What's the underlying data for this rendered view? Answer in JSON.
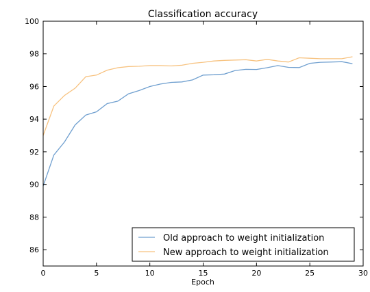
{
  "chart_data": {
    "type": "line",
    "title": "Classification accuracy",
    "xlabel": "Epoch",
    "ylabel": "",
    "xlim": [
      0,
      30
    ],
    "ylim": [
      85,
      100
    ],
    "xticks": [
      0,
      5,
      10,
      15,
      20,
      25,
      30
    ],
    "yticks": [
      86,
      88,
      90,
      92,
      94,
      96,
      98,
      100
    ],
    "grid": false,
    "legend_position": "lower-right",
    "series": [
      {
        "name": "Old approach to weight initialization",
        "color": "#6f9fcf",
        "x": [
          0,
          1,
          2,
          3,
          4,
          5,
          6,
          7,
          8,
          9,
          10,
          11,
          12,
          13,
          14,
          15,
          16,
          17,
          18,
          19,
          20,
          21,
          22,
          23,
          24,
          25,
          26,
          27,
          28,
          29
        ],
        "values": [
          89.9,
          91.8,
          92.6,
          93.65,
          94.25,
          94.45,
          94.95,
          95.1,
          95.55,
          95.75,
          96.0,
          96.15,
          96.25,
          96.28,
          96.4,
          96.7,
          96.72,
          96.76,
          96.98,
          97.05,
          97.04,
          97.15,
          97.28,
          97.17,
          97.16,
          97.42,
          97.48,
          97.5,
          97.52,
          97.4
        ]
      },
      {
        "name": "New approach to weight initialization",
        "color": "#f7c27f",
        "x": [
          0,
          1,
          2,
          3,
          4,
          5,
          6,
          7,
          8,
          9,
          10,
          11,
          12,
          13,
          14,
          15,
          16,
          17,
          18,
          19,
          20,
          21,
          22,
          23,
          24,
          25,
          26,
          27,
          28,
          29
        ],
        "values": [
          93.0,
          94.8,
          95.45,
          95.9,
          96.6,
          96.7,
          97.0,
          97.15,
          97.22,
          97.24,
          97.28,
          97.28,
          97.26,
          97.3,
          97.42,
          97.48,
          97.56,
          97.6,
          97.62,
          97.64,
          97.56,
          97.66,
          97.56,
          97.5,
          97.76,
          97.73,
          97.7,
          97.7,
          97.7,
          97.82
        ]
      }
    ]
  }
}
